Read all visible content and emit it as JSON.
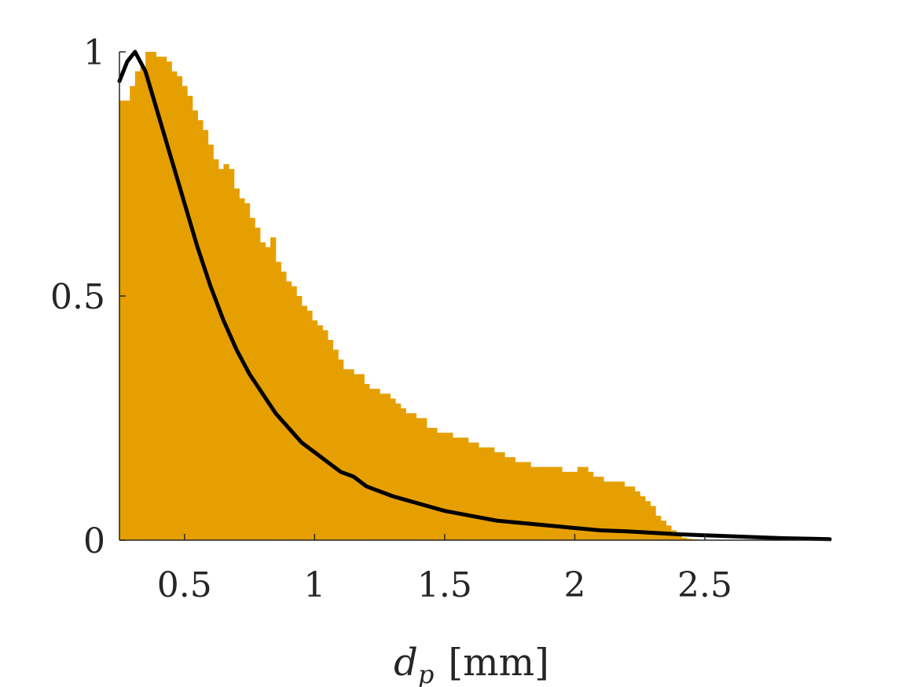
{
  "chart_data": {
    "type": "bar",
    "xlabel": "d_p [mm]",
    "xlabel_main": "d",
    "xlabel_sub": "p",
    "xlabel_unit": "[mm]",
    "xlim": [
      0.25,
      2.98
    ],
    "ylim": [
      0,
      1
    ],
    "grid": false,
    "x_ticks": [
      0.5,
      1,
      1.5,
      2,
      2.5
    ],
    "x_tick_labels": [
      "0.5",
      "1",
      "1.5",
      "2",
      "2.5"
    ],
    "y_ticks": [
      0,
      0.5,
      1
    ],
    "y_tick_labels": [
      "0",
      "0.5",
      "1"
    ],
    "histogram": {
      "name": "histogram",
      "color": "#E69F00",
      "bin_start": 0.25,
      "bin_width": 0.02,
      "values": [
        0.9,
        0.9,
        0.93,
        0.96,
        0.97,
        1.0,
        1.0,
        0.99,
        0.99,
        0.98,
        0.96,
        0.95,
        0.93,
        0.91,
        0.88,
        0.86,
        0.84,
        0.81,
        0.78,
        0.76,
        0.77,
        0.76,
        0.72,
        0.7,
        0.69,
        0.66,
        0.64,
        0.61,
        0.6,
        0.62,
        0.57,
        0.55,
        0.53,
        0.52,
        0.5,
        0.48,
        0.47,
        0.45,
        0.44,
        0.43,
        0.41,
        0.39,
        0.37,
        0.35,
        0.35,
        0.34,
        0.34,
        0.32,
        0.31,
        0.31,
        0.3,
        0.3,
        0.29,
        0.28,
        0.27,
        0.26,
        0.26,
        0.25,
        0.25,
        0.23,
        0.23,
        0.22,
        0.22,
        0.22,
        0.21,
        0.21,
        0.21,
        0.2,
        0.2,
        0.19,
        0.19,
        0.19,
        0.18,
        0.18,
        0.17,
        0.17,
        0.16,
        0.16,
        0.16,
        0.15,
        0.15,
        0.15,
        0.15,
        0.15,
        0.15,
        0.14,
        0.14,
        0.14,
        0.15,
        0.15,
        0.14,
        0.13,
        0.13,
        0.12,
        0.12,
        0.12,
        0.12,
        0.11,
        0.11,
        0.1,
        0.09,
        0.08,
        0.07,
        0.05,
        0.04,
        0.03,
        0.02,
        0.01,
        0.005,
        0.003,
        0.002,
        0.001
      ]
    },
    "series": [
      {
        "color": "#000000",
        "x": [
          0.25,
          0.28,
          0.31,
          0.35,
          0.4,
          0.45,
          0.5,
          0.55,
          0.6,
          0.65,
          0.7,
          0.75,
          0.8,
          0.85,
          0.9,
          0.95,
          1.0,
          1.05,
          1.1,
          1.15,
          1.2,
          1.3,
          1.4,
          1.5,
          1.6,
          1.7,
          1.8,
          1.9,
          2.0,
          2.1,
          2.2,
          2.3,
          2.4,
          2.5,
          2.6,
          2.7,
          2.8,
          2.9,
          2.98
        ],
        "y": [
          0.94,
          0.98,
          1.0,
          0.96,
          0.87,
          0.78,
          0.69,
          0.6,
          0.52,
          0.45,
          0.39,
          0.34,
          0.3,
          0.26,
          0.23,
          0.2,
          0.18,
          0.16,
          0.14,
          0.13,
          0.11,
          0.09,
          0.075,
          0.06,
          0.05,
          0.04,
          0.035,
          0.03,
          0.025,
          0.02,
          0.018,
          0.015,
          0.012,
          0.01,
          0.008,
          0.006,
          0.004,
          0.003,
          0.002
        ]
      }
    ]
  }
}
